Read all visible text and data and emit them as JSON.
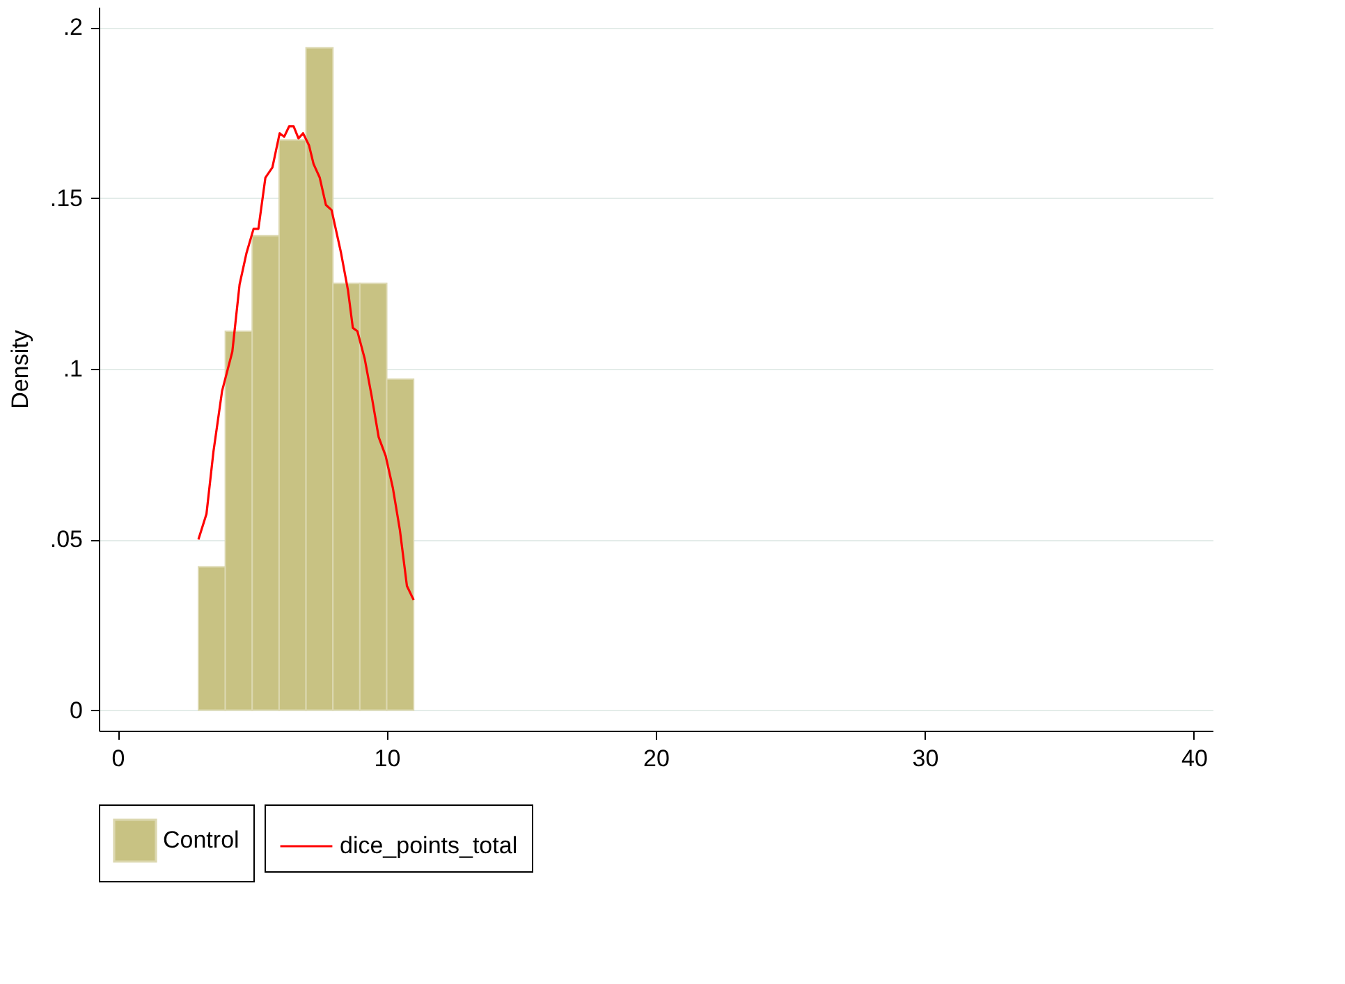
{
  "chart_data": {
    "type": "histogram",
    "ylabel": "Density",
    "xlim": [
      -0.7,
      40.7
    ],
    "xticks": [
      0,
      10,
      20,
      30,
      40
    ],
    "ylim": [
      -0.006,
      0.206
    ],
    "yticks": [
      {
        "value": 0,
        "label": "0"
      },
      {
        "value": 0.05,
        "label": ".05"
      },
      {
        "value": 0.1,
        "label": ".1"
      },
      {
        "value": 0.15,
        "label": ".15"
      },
      {
        "value": 0.2,
        "label": ".2"
      }
    ],
    "grid": "y",
    "legend": "bottom",
    "series": [
      {
        "name": "Control",
        "color": "#c8c283",
        "bins": [
          3,
          4,
          5,
          6,
          7,
          8,
          9,
          10,
          11
        ],
        "values": [
          0.042,
          0.111,
          0.139,
          0.167,
          0.194,
          0.125,
          0.125,
          0.097
        ]
      },
      {
        "name": "dice_points_total",
        "type": "line",
        "color": "#ff0000",
        "x": [
          3.0,
          3.3,
          3.56,
          3.88,
          4.26,
          4.53,
          4.79,
          5.05,
          5.23,
          5.49,
          5.75,
          6.02,
          6.19,
          6.37,
          6.54,
          6.72,
          6.89,
          7.11,
          7.28,
          7.51,
          7.74,
          7.95,
          8.3,
          8.56,
          8.74,
          8.91,
          9.18,
          9.44,
          9.7,
          9.96,
          10.23,
          10.49,
          10.75,
          11.0
        ],
        "values": [
          0.05,
          0.0575,
          0.0758,
          0.0935,
          0.105,
          0.1247,
          0.134,
          0.141,
          0.141,
          0.156,
          0.159,
          0.169,
          0.168,
          0.171,
          0.171,
          0.1675,
          0.169,
          0.1655,
          0.16,
          0.156,
          0.148,
          0.1465,
          0.134,
          0.123,
          0.112,
          0.111,
          0.103,
          0.092,
          0.08,
          0.0745,
          0.065,
          0.0527,
          0.0364,
          0.0323
        ]
      }
    ]
  }
}
